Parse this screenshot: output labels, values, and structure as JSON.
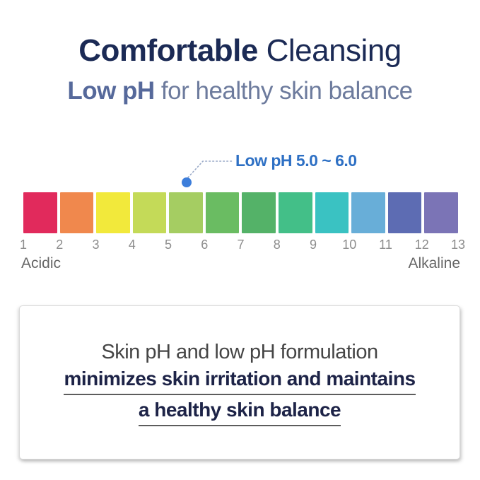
{
  "header": {
    "title_bold": "Comfortable",
    "title_regular": " Cleansing",
    "subtitle_bold": "Low pH",
    "subtitle_regular": " for healthy skin balance"
  },
  "ph_scale": {
    "annotation_label": "Low pH 5.0 ~ 6.0",
    "acid_label": "Acidic",
    "alkaline_label": "Alkaline"
  },
  "chart_data": {
    "type": "heatmap",
    "title": "pH color scale 1 to 13",
    "tick_labels": [
      "1",
      "2",
      "3",
      "4",
      "5",
      "6",
      "7",
      "8",
      "9",
      "10",
      "11",
      "12",
      "13"
    ],
    "segment_colors": [
      "#e12a5c",
      "#f0884d",
      "#f2e93b",
      "#c4da58",
      "#a5cd62",
      "#6abc62",
      "#54b268",
      "#43bf88",
      "#3ac2c2",
      "#68aed8",
      "#5d6cb3",
      "#7b74b6"
    ],
    "annotation": "Low pH 5.0 ~ 6.0",
    "annotation_dot_ph": 5.5,
    "axis_left_label": "Acidic",
    "axis_right_label": "Alkaline",
    "legend": "none",
    "grid": false
  },
  "info_box": {
    "line1": "Skin pH and low pH formulation",
    "line2": "minimizes skin irritation and maintains",
    "line3": "a healthy skin balance"
  },
  "colors": {
    "title_navy": "#1b2a55",
    "subtitle_slate": "#56699b",
    "callout_blue": "#2e70c4",
    "dot_blue": "#3d7edb",
    "dotted_line": "#9aaac8",
    "tick_gray": "#8d8d8d",
    "end_label_gray": "#666666",
    "box_text_gray": "#454545",
    "box_text_navy": "#1d2347"
  }
}
